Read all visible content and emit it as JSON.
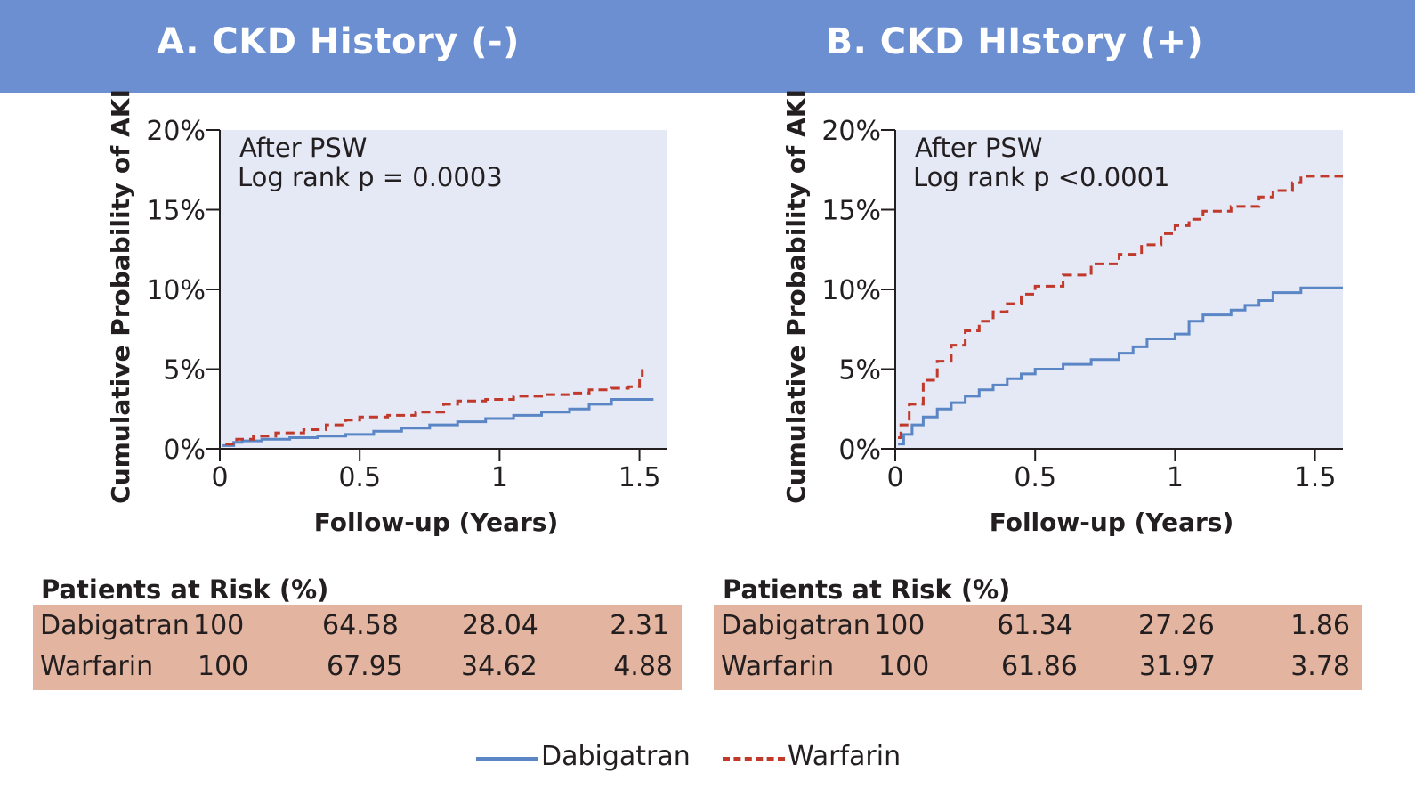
{
  "header_color": "#6b8fd1",
  "panels": [
    {
      "title": "A. CKD History (-)",
      "annotation_line1": "After PSW",
      "annotation_line2": "Log rank p = 0.0003"
    },
    {
      "title": "B. CKD HIstory (+)",
      "annotation_line1": "After PSW",
      "annotation_line2": "Log rank p <0.0001"
    }
  ],
  "chart_data": [
    {
      "type": "line",
      "title": "A. CKD History (-)",
      "xlabel": "Follow-up (Years)",
      "ylabel": "Cumulative Probability of AKI",
      "xlim": [
        0,
        1.6
      ],
      "ylim": [
        0,
        20
      ],
      "x_ticks": [
        0,
        0.5,
        1,
        1.5
      ],
      "x_tick_labels": [
        "0",
        "0.5",
        "1",
        "1.5"
      ],
      "y_ticks": [
        0,
        5,
        10,
        15,
        20
      ],
      "y_tick_labels": [
        "0%",
        "5%",
        "10%",
        "15%",
        "20%"
      ],
      "plot_background": "#e5e8f5",
      "annotation": [
        "After PSW",
        "Log rank p = 0.0003"
      ],
      "series": [
        {
          "name": "Dabigatran",
          "color": "#5b86c5",
          "dash": "solid",
          "points": [
            [
              0.01,
              0.2
            ],
            [
              0.05,
              0.4
            ],
            [
              0.08,
              0.5
            ],
            [
              0.15,
              0.6
            ],
            [
              0.25,
              0.7
            ],
            [
              0.35,
              0.8
            ],
            [
              0.45,
              0.9
            ],
            [
              0.55,
              1.1
            ],
            [
              0.65,
              1.3
            ],
            [
              0.75,
              1.5
            ],
            [
              0.85,
              1.7
            ],
            [
              0.95,
              1.9
            ],
            [
              1.05,
              2.1
            ],
            [
              1.15,
              2.3
            ],
            [
              1.25,
              2.5
            ],
            [
              1.32,
              2.8
            ],
            [
              1.4,
              3.1
            ],
            [
              1.55,
              3.1
            ]
          ]
        },
        {
          "name": "Warfarin",
          "color": "#c0392b",
          "dash": "dashed",
          "points": [
            [
              0.02,
              0.3
            ],
            [
              0.06,
              0.6
            ],
            [
              0.12,
              0.8
            ],
            [
              0.2,
              1.0
            ],
            [
              0.3,
              1.2
            ],
            [
              0.38,
              1.5
            ],
            [
              0.45,
              1.8
            ],
            [
              0.5,
              2.0
            ],
            [
              0.6,
              2.1
            ],
            [
              0.7,
              2.3
            ],
            [
              0.8,
              2.8
            ],
            [
              0.85,
              3.0
            ],
            [
              0.95,
              3.1
            ],
            [
              1.05,
              3.3
            ],
            [
              1.15,
              3.4
            ],
            [
              1.25,
              3.5
            ],
            [
              1.32,
              3.7
            ],
            [
              1.4,
              3.8
            ],
            [
              1.46,
              3.9
            ],
            [
              1.5,
              4.4
            ],
            [
              1.51,
              5.0
            ]
          ]
        }
      ]
    },
    {
      "type": "line",
      "title": "B. CKD HIstory (+)",
      "xlabel": "Follow-up (Years)",
      "ylabel": "Cumulative Probability of AKI",
      "xlim": [
        0,
        1.6
      ],
      "ylim": [
        0,
        20
      ],
      "x_ticks": [
        0,
        0.5,
        1,
        1.5
      ],
      "x_tick_labels": [
        "0",
        "0.5",
        "1",
        "1.5"
      ],
      "y_ticks": [
        0,
        5,
        10,
        15,
        20
      ],
      "y_tick_labels": [
        "0%",
        "5%",
        "10%",
        "15%",
        "20%"
      ],
      "plot_background": "#e5e8f5",
      "annotation": [
        "After PSW",
        "Log rank p <0.0001"
      ],
      "series": [
        {
          "name": "Dabigatran",
          "color": "#5b86c5",
          "dash": "solid",
          "points": [
            [
              0.01,
              0.3
            ],
            [
              0.03,
              0.9
            ],
            [
              0.06,
              1.5
            ],
            [
              0.1,
              2.0
            ],
            [
              0.15,
              2.5
            ],
            [
              0.2,
              2.9
            ],
            [
              0.25,
              3.3
            ],
            [
              0.3,
              3.7
            ],
            [
              0.35,
              4.0
            ],
            [
              0.4,
              4.4
            ],
            [
              0.45,
              4.7
            ],
            [
              0.5,
              5.0
            ],
            [
              0.6,
              5.3
            ],
            [
              0.7,
              5.6
            ],
            [
              0.8,
              6.0
            ],
            [
              0.85,
              6.4
            ],
            [
              0.9,
              6.9
            ],
            [
              1.0,
              7.2
            ],
            [
              1.05,
              8.0
            ],
            [
              1.1,
              8.4
            ],
            [
              1.2,
              8.7
            ],
            [
              1.25,
              9.0
            ],
            [
              1.3,
              9.3
            ],
            [
              1.35,
              9.8
            ],
            [
              1.45,
              10.1
            ],
            [
              1.6,
              10.1
            ]
          ]
        },
        {
          "name": "Warfarin",
          "color": "#c0392b",
          "dash": "dashed",
          "points": [
            [
              0.01,
              0.7
            ],
            [
              0.02,
              1.5
            ],
            [
              0.05,
              2.8
            ],
            [
              0.1,
              4.3
            ],
            [
              0.15,
              5.5
            ],
            [
              0.2,
              6.5
            ],
            [
              0.25,
              7.4
            ],
            [
              0.3,
              8.0
            ],
            [
              0.35,
              8.6
            ],
            [
              0.4,
              9.1
            ],
            [
              0.45,
              9.7
            ],
            [
              0.5,
              10.2
            ],
            [
              0.6,
              10.9
            ],
            [
              0.7,
              11.6
            ],
            [
              0.8,
              12.2
            ],
            [
              0.88,
              12.8
            ],
            [
              0.95,
              13.5
            ],
            [
              1.0,
              14.0
            ],
            [
              1.05,
              14.4
            ],
            [
              1.1,
              14.9
            ],
            [
              1.2,
              15.2
            ],
            [
              1.3,
              15.8
            ],
            [
              1.35,
              16.2
            ],
            [
              1.42,
              16.7
            ],
            [
              1.45,
              17.1
            ],
            [
              1.6,
              17.1
            ]
          ]
        }
      ]
    }
  ],
  "risk_tables": [
    {
      "heading": "Patients at Risk (%)",
      "color": "#e3b49f",
      "rows": [
        {
          "label": "Dabigatran",
          "values": [
            "100",
            "64.58",
            "28.04",
            "2.31"
          ]
        },
        {
          "label": "Warfarin",
          "values": [
            "100",
            "67.95",
            "34.62",
            "4.88"
          ]
        }
      ]
    },
    {
      "heading": "Patients at Risk (%)",
      "color": "#e3b49f",
      "rows": [
        {
          "label": "Dabigatran",
          "values": [
            "100",
            "61.34",
            "27.26",
            "1.86"
          ]
        },
        {
          "label": "Warfarin",
          "values": [
            "100",
            "61.86",
            "31.97",
            "3.78"
          ]
        }
      ]
    }
  ],
  "legend": {
    "items": [
      {
        "label": "Dabigatran",
        "color": "#5b86c5",
        "dash": "solid"
      },
      {
        "label": "Warfarin",
        "color": "#c0392b",
        "dash": "dashed"
      }
    ]
  }
}
